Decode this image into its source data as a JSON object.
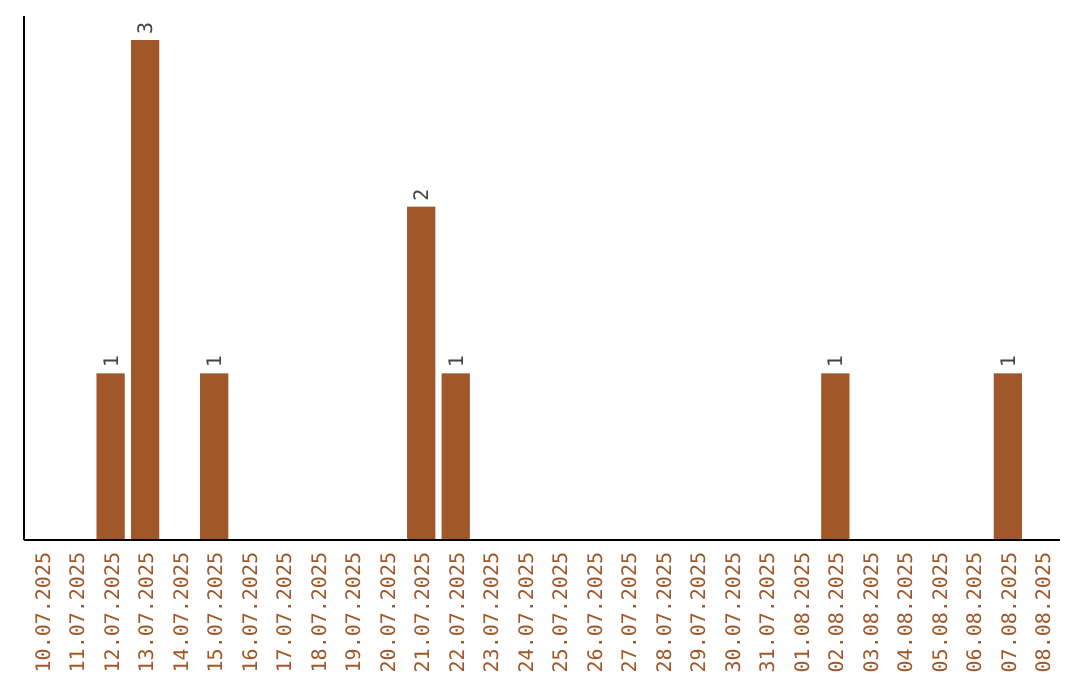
{
  "chart_data": {
    "type": "bar",
    "categories": [
      "10.07.2025",
      "11.07.2025",
      "12.07.2025",
      "13.07.2025",
      "14.07.2025",
      "15.07.2025",
      "16.07.2025",
      "17.07.2025",
      "18.07.2025",
      "19.07.2025",
      "20.07.2025",
      "21.07.2025",
      "22.07.2025",
      "23.07.2025",
      "24.07.2025",
      "25.07.2025",
      "26.07.2025",
      "27.07.2025",
      "28.07.2025",
      "29.07.2025",
      "30.07.2025",
      "31.07.2025",
      "01.08.2025",
      "02.08.2025",
      "03.08.2025",
      "04.08.2025",
      "05.08.2025",
      "06.08.2025",
      "07.08.2025",
      "08.08.2025"
    ],
    "values": [
      0,
      0,
      1,
      3,
      0,
      1,
      0,
      0,
      0,
      0,
      0,
      2,
      1,
      0,
      0,
      0,
      0,
      0,
      0,
      0,
      0,
      0,
      0,
      1,
      0,
      0,
      0,
      0,
      1,
      0
    ],
    "value_labels": [
      null,
      null,
      "1",
      "3",
      null,
      "1",
      null,
      null,
      null,
      null,
      null,
      "2",
      "1",
      null,
      null,
      null,
      null,
      null,
      null,
      null,
      null,
      null,
      null,
      "1",
      null,
      null,
      null,
      null,
      "1",
      null
    ],
    "color": "#a0582a",
    "tick_labels": "x"
  }
}
